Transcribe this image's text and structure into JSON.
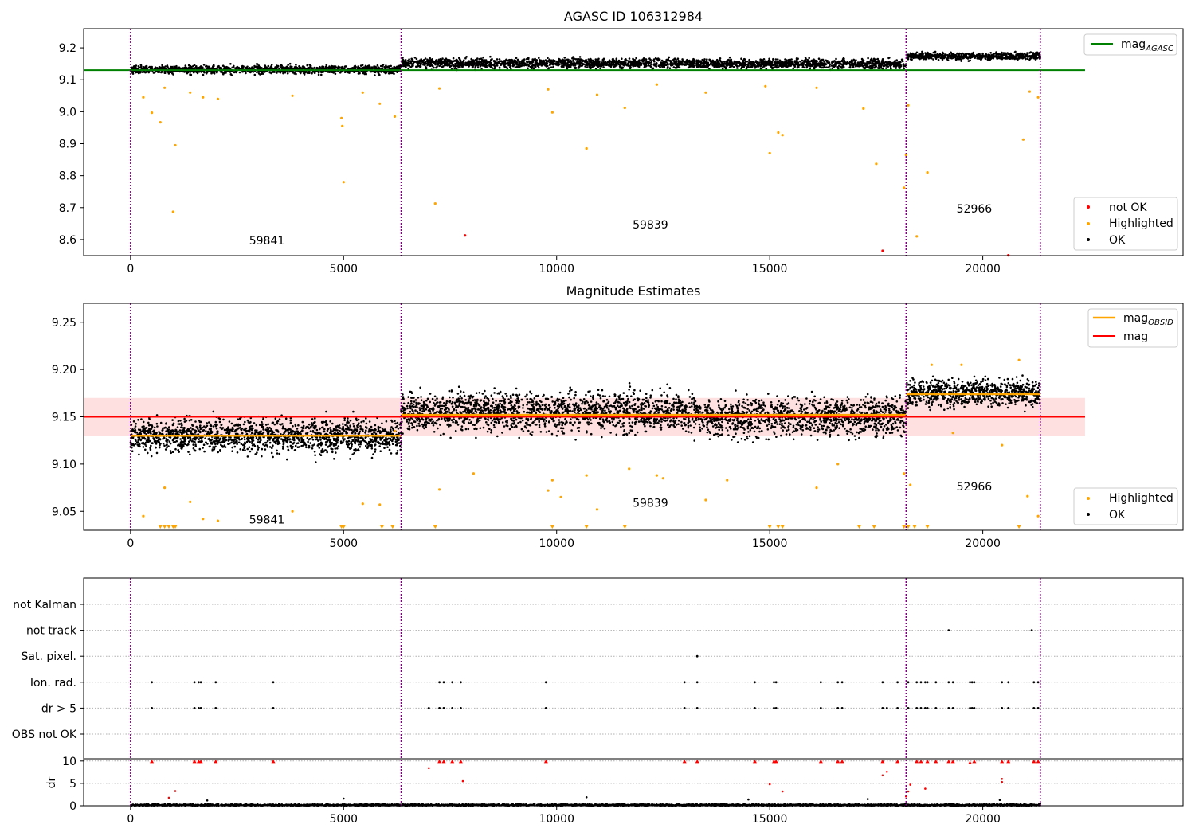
{
  "chart_data": [
    {
      "type": "scatter",
      "title": "AGASC ID 106312984",
      "xlim": [
        -1100,
        24700
      ],
      "ylim": [
        8.55,
        9.26
      ],
      "x_ticks": [
        0,
        5000,
        10000,
        15000,
        20000
      ],
      "x_tick_labels": [
        "0",
        "5000",
        "10000",
        "15000",
        "20000"
      ],
      "y_ticks": [
        8.6,
        8.7,
        8.8,
        8.9,
        9.0,
        9.1,
        9.2
      ],
      "y_tick_labels": [
        "8.6",
        "8.7",
        "8.8",
        "8.9",
        "9.0",
        "9.1",
        "9.2"
      ],
      "mag_agasc": 9.13,
      "mag_agasc_range": [
        -1100,
        22400
      ],
      "obsid_boundaries": [
        0,
        6350,
        18200,
        21350
      ],
      "obsids": [
        {
          "label": "59841",
          "x": 3200,
          "y": 8.585
        },
        {
          "label": "59839",
          "x": 12200,
          "y": 8.635
        },
        {
          "label": "52966",
          "x": 19800,
          "y": 8.685
        }
      ],
      "segments": [
        {
          "start": 0,
          "end": 6350,
          "mean": 9.132,
          "spread": 0.022
        },
        {
          "start": 6350,
          "end": 13300,
          "mean": 9.152,
          "spread": 0.025
        },
        {
          "start": 13300,
          "end": 18200,
          "mean": 9.15,
          "spread": 0.025
        },
        {
          "start": 18200,
          "end": 21350,
          "mean": 9.174,
          "spread": 0.018
        }
      ],
      "highlighted": [
        [
          300,
          9.045
        ],
        [
          500,
          8.997
        ],
        [
          700,
          8.967
        ],
        [
          800,
          9.075
        ],
        [
          1050,
          8.895
        ],
        [
          1000,
          8.687
        ],
        [
          1400,
          9.06
        ],
        [
          1700,
          9.045
        ],
        [
          2050,
          9.04
        ],
        [
          3800,
          9.05
        ],
        [
          4950,
          8.98
        ],
        [
          4970,
          8.955
        ],
        [
          5000,
          8.78
        ],
        [
          5450,
          9.06
        ],
        [
          5850,
          9.025
        ],
        [
          6200,
          8.985
        ],
        [
          7150,
          8.713
        ],
        [
          7250,
          9.073
        ],
        [
          9900,
          8.998
        ],
        [
          10700,
          8.885
        ],
        [
          10950,
          9.053
        ],
        [
          11600,
          9.012
        ],
        [
          13500,
          9.06
        ],
        [
          15000,
          8.87
        ],
        [
          15200,
          8.935
        ],
        [
          15300,
          8.927
        ],
        [
          16100,
          9.075
        ],
        [
          17200,
          9.01
        ],
        [
          17500,
          8.837
        ],
        [
          18200,
          8.865
        ],
        [
          18150,
          8.762
        ],
        [
          18250,
          9.02
        ],
        [
          18450,
          8.61
        ],
        [
          18700,
          8.81
        ],
        [
          20950,
          8.913
        ],
        [
          21100,
          9.063
        ],
        [
          21300,
          9.045
        ],
        [
          9800,
          9.07
        ],
        [
          12350,
          9.085
        ],
        [
          14900,
          9.08
        ]
      ],
      "not_ok": [
        [
          7850,
          8.613
        ],
        [
          17650,
          8.565
        ],
        [
          20600,
          8.551
        ]
      ],
      "legend_top": [
        {
          "label": "mag",
          "subscript": "AGASC",
          "color": "#008000"
        }
      ],
      "legend_bottom": [
        {
          "label": "not OK",
          "color": "#ff0000"
        },
        {
          "label": "Highlighted",
          "color": "#ffa500"
        },
        {
          "label": "OK",
          "color": "#000000"
        }
      ]
    },
    {
      "type": "scatter",
      "title": "Magnitude Estimates",
      "xlim": [
        -1100,
        24700
      ],
      "ylim": [
        9.03,
        9.27
      ],
      "x_ticks": [
        0,
        5000,
        10000,
        15000,
        20000
      ],
      "x_tick_labels": [
        "0",
        "5000",
        "10000",
        "15000",
        "20000"
      ],
      "y_ticks": [
        9.05,
        9.1,
        9.15,
        9.2,
        9.25
      ],
      "y_tick_labels": [
        "9.05",
        "9.10",
        "9.15",
        "9.20",
        "9.25"
      ],
      "mag": 9.15,
      "mag_band": [
        9.13,
        9.17
      ],
      "mag_range": [
        -1100,
        22400
      ],
      "obsid_boundaries": [
        0,
        6350,
        18200,
        21350
      ],
      "obsid_mags": [
        {
          "start": 0,
          "end": 6350,
          "mag": 9.13
        },
        {
          "start": 6350,
          "end": 18200,
          "mag": 9.152
        },
        {
          "start": 18200,
          "end": 21350,
          "mag": 9.174
        }
      ],
      "obsids": [
        {
          "label": "59841",
          "x": 3200,
          "y": 9.037
        },
        {
          "label": "59839",
          "x": 12200,
          "y": 9.055
        },
        {
          "label": "52966",
          "x": 19800,
          "y": 9.072
        }
      ],
      "segments": [
        {
          "start": 0,
          "end": 6350,
          "mean": 9.13,
          "spread": 0.03
        },
        {
          "start": 6350,
          "end": 13300,
          "mean": 9.155,
          "spread": 0.035
        },
        {
          "start": 13300,
          "end": 18200,
          "mean": 9.15,
          "spread": 0.033
        },
        {
          "start": 18200,
          "end": 21350,
          "mean": 9.175,
          "spread": 0.024
        }
      ],
      "highlighted": [
        [
          300,
          9.045
        ],
        [
          700,
          9.13
        ],
        [
          800,
          9.075
        ],
        [
          1400,
          9.06
        ],
        [
          1700,
          9.042
        ],
        [
          2050,
          9.04
        ],
        [
          3800,
          9.05
        ],
        [
          4950,
          9.13
        ],
        [
          5450,
          9.058
        ],
        [
          5850,
          9.057
        ],
        [
          6200,
          9.135
        ],
        [
          7250,
          9.073
        ],
        [
          8050,
          9.09
        ],
        [
          9800,
          9.072
        ],
        [
          9900,
          9.083
        ],
        [
          10100,
          9.065
        ],
        [
          10700,
          9.088
        ],
        [
          10950,
          9.052
        ],
        [
          11700,
          9.095
        ],
        [
          12350,
          9.088
        ],
        [
          12500,
          9.085
        ],
        [
          13500,
          9.062
        ],
        [
          14000,
          9.083
        ],
        [
          16100,
          9.075
        ],
        [
          16600,
          9.1
        ],
        [
          18150,
          9.09
        ],
        [
          18300,
          9.078
        ],
        [
          19300,
          9.133
        ],
        [
          20450,
          9.12
        ],
        [
          21050,
          9.066
        ],
        [
          21300,
          9.045
        ],
        [
          20850,
          9.21
        ],
        [
          18800,
          9.205
        ],
        [
          19500,
          9.205
        ]
      ],
      "low_markers": [
        700,
        800,
        900,
        1000,
        1050,
        4950,
        5000,
        5900,
        6150,
        7150,
        9900,
        10700,
        11600,
        15000,
        15200,
        15300,
        17100,
        17450,
        18150,
        18250,
        18400,
        18700,
        20850
      ],
      "legend_top": [
        {
          "label": "mag",
          "subscript": "OBSID",
          "color": "#ffa500"
        },
        {
          "label": "mag",
          "subscript": "",
          "color": "#ff0000"
        }
      ],
      "legend_bottom": [
        {
          "label": "Highlighted",
          "color": "#ffa500"
        },
        {
          "label": "OK",
          "color": "#000000"
        }
      ]
    },
    {
      "type": "scatter",
      "xlim": [
        -1100,
        24700
      ],
      "x_ticks": [
        0,
        5000,
        10000,
        15000,
        20000
      ],
      "x_tick_labels": [
        "0",
        "5000",
        "10000",
        "15000",
        "20000"
      ],
      "flag_rows": [
        "not Kalman",
        "not track",
        "Sat. pixel.",
        "Ion. rad.",
        "dr > 5",
        "OBS not OK"
      ],
      "flag_points": {
        "not track": [
          19200,
          21150
        ],
        "Sat. pixel.": [
          13300
        ],
        "Ion. rad.": [
          500,
          1500,
          1600,
          1650,
          2000,
          3350,
          7250,
          7350,
          7550,
          7750,
          9750,
          13000,
          13300,
          14650,
          15100,
          15150,
          16200,
          16600,
          16700,
          17650,
          18000,
          18250,
          18450,
          18550,
          18650,
          18700,
          18900,
          19200,
          19300,
          19700,
          19750,
          19800,
          20450,
          20600,
          21200,
          21300
        ],
        "dr > 5": [
          500,
          1500,
          1600,
          1650,
          2000,
          3350,
          7000,
          7250,
          7350,
          7550,
          7750,
          9750,
          13000,
          13300,
          14650,
          15100,
          15150,
          16200,
          16600,
          16700,
          17650,
          17750,
          18000,
          18250,
          18450,
          18550,
          18650,
          18700,
          18900,
          19200,
          19300,
          19700,
          19750,
          19800,
          20450,
          20600,
          21200,
          21300
        ]
      },
      "dr_ylim": [
        0,
        10.5
      ],
      "dr_y_ticks": [
        0,
        5,
        10
      ],
      "dr_y_tick_labels": [
        "0",
        "5",
        "10"
      ],
      "dr_ylabel": "dr",
      "dr_high": [
        [
          500,
          9.9
        ],
        [
          1500,
          9.9
        ],
        [
          1600,
          9.9
        ],
        [
          1650,
          9.9
        ],
        [
          2000,
          9.9
        ],
        [
          3350,
          9.9
        ],
        [
          7250,
          9.9
        ],
        [
          7350,
          9.9
        ],
        [
          7550,
          9.9
        ],
        [
          7750,
          9.9
        ],
        [
          9750,
          9.9
        ],
        [
          13000,
          9.9
        ],
        [
          13300,
          9.9
        ],
        [
          14650,
          9.9
        ],
        [
          15100,
          9.9
        ],
        [
          15150,
          9.9
        ],
        [
          16200,
          9.9
        ],
        [
          16600,
          9.9
        ],
        [
          16700,
          9.9
        ],
        [
          17650,
          9.9
        ],
        [
          18000,
          9.9
        ],
        [
          18450,
          9.9
        ],
        [
          18550,
          9.9
        ],
        [
          18700,
          9.9
        ],
        [
          18900,
          9.9
        ],
        [
          19200,
          9.9
        ],
        [
          19300,
          9.9
        ],
        [
          19700,
          9.6
        ],
        [
          19800,
          9.9
        ],
        [
          20450,
          9.9
        ],
        [
          20600,
          9.9
        ],
        [
          21200,
          9.9
        ],
        [
          21300,
          9.9
        ],
        [
          7000,
          8.4
        ],
        [
          7800,
          5.5
        ],
        [
          17650,
          6.8
        ],
        [
          17750,
          7.6
        ],
        [
          18250,
          3.2
        ],
        [
          18300,
          4.7
        ],
        [
          18650,
          3.8
        ],
        [
          20450,
          5.3
        ],
        [
          20450,
          6.0
        ],
        [
          15000,
          4.8
        ],
        [
          15300,
          3.2
        ],
        [
          1050,
          3.3
        ],
        [
          900,
          1.8
        ],
        [
          18200,
          2.1
        ]
      ],
      "obsid_boundaries": [
        0,
        6350,
        18200,
        21350
      ]
    }
  ]
}
